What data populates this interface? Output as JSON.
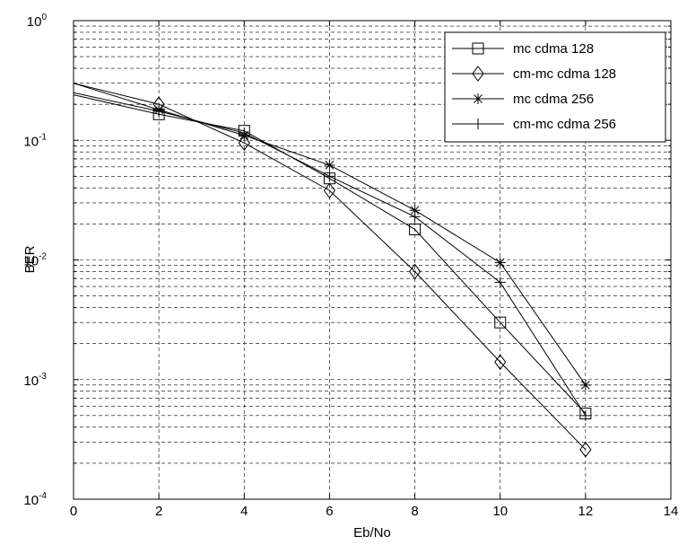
{
  "chart_data": {
    "type": "line",
    "title": "",
    "xlabel": "Eb/No",
    "ylabel": "BER",
    "xlim": [
      0,
      14
    ],
    "ylim": [
      0.0001,
      1
    ],
    "yscale": "log",
    "grid": true,
    "legend_position": "top-right",
    "x_ticks": [
      "0",
      "2",
      "4",
      "6",
      "8",
      "10",
      "12",
      "14"
    ],
    "y_ticks": [
      {
        "base": "10",
        "exp": "0"
      },
      {
        "base": "10",
        "exp": "-1"
      },
      {
        "base": "10",
        "exp": "-2"
      },
      {
        "base": "10",
        "exp": "-3"
      },
      {
        "base": "10",
        "exp": "-4"
      }
    ],
    "series": [
      {
        "name": "mc cdma 128",
        "marker": "square",
        "x": [
          0,
          2,
          4,
          6,
          8,
          10,
          12
        ],
        "y": [
          0.24,
          0.165,
          0.12,
          0.048,
          0.018,
          0.003,
          0.00052
        ]
      },
      {
        "name": "cm-mc cdma 128",
        "marker": "diamond",
        "x": [
          0,
          2,
          4,
          6,
          8,
          10,
          12
        ],
        "y": [
          0.3,
          0.2,
          0.095,
          0.038,
          0.008,
          0.0014,
          0.00026
        ]
      },
      {
        "name": "mc cdma 256",
        "marker": "star",
        "x": [
          0,
          2,
          4,
          6,
          8,
          10,
          12
        ],
        "y": [
          0.3,
          0.18,
          0.11,
          0.062,
          0.026,
          0.0095,
          0.0009
        ]
      },
      {
        "name": "cm-mc cdma 256",
        "marker": "plus",
        "x": [
          0,
          2,
          4,
          6,
          8,
          10,
          12
        ],
        "y": [
          0.25,
          0.175,
          0.115,
          0.05,
          0.023,
          0.0065,
          0.0005
        ]
      }
    ]
  }
}
